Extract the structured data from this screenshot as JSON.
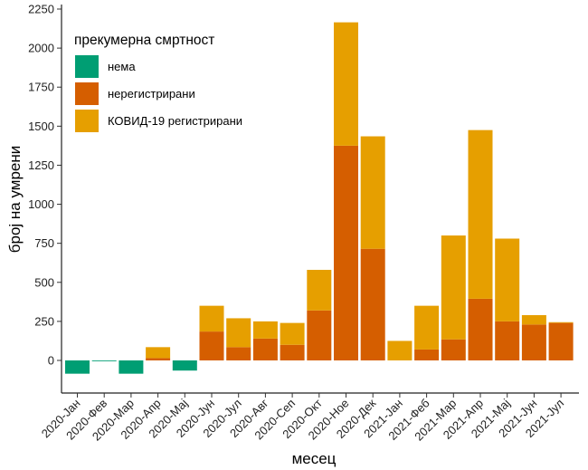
{
  "chart_data": {
    "type": "bar",
    "stacked": true,
    "title": "",
    "xlabel": "месец",
    "ylabel": "број на умрени",
    "ylim": [
      -200,
      2250
    ],
    "yticks": [
      0,
      250,
      500,
      750,
      1000,
      1250,
      1500,
      1750,
      2000,
      2250
    ],
    "categories": [
      "2020-Јан",
      "2020-Фев",
      "2020-Мар",
      "2020-Апр",
      "2020-Мај",
      "2020-Јун",
      "2020-Јул",
      "2020-Авг",
      "2020-Сеп",
      "2020-Окт",
      "2020-Ное",
      "2020-Дек",
      "2021-Јан",
      "2021-Феб",
      "2021-Мар",
      "2021-Апр",
      "2021-Мај",
      "2021-Јун",
      "2021-Јул"
    ],
    "legend": {
      "title": "прекумерна смртност",
      "position": "top-left"
    },
    "series": [
      {
        "name": "нема",
        "color": "#009E73",
        "values": [
          -85,
          -5,
          -85,
          0,
          -65,
          0,
          0,
          0,
          0,
          0,
          0,
          0,
          0,
          0,
          0,
          0,
          0,
          0,
          0
        ]
      },
      {
        "name": "нерегистрирани",
        "color": "#D55E00",
        "values": [
          0,
          0,
          0,
          15,
          0,
          185,
          85,
          140,
          100,
          320,
          1375,
          715,
          0,
          70,
          135,
          395,
          250,
          230,
          240
        ]
      },
      {
        "name": "КОВИД-19 регистрирани",
        "color": "#E69F00",
        "values": [
          0,
          0,
          0,
          70,
          0,
          165,
          185,
          110,
          140,
          260,
          790,
          720,
          125,
          280,
          665,
          1080,
          530,
          60,
          5
        ]
      }
    ]
  }
}
